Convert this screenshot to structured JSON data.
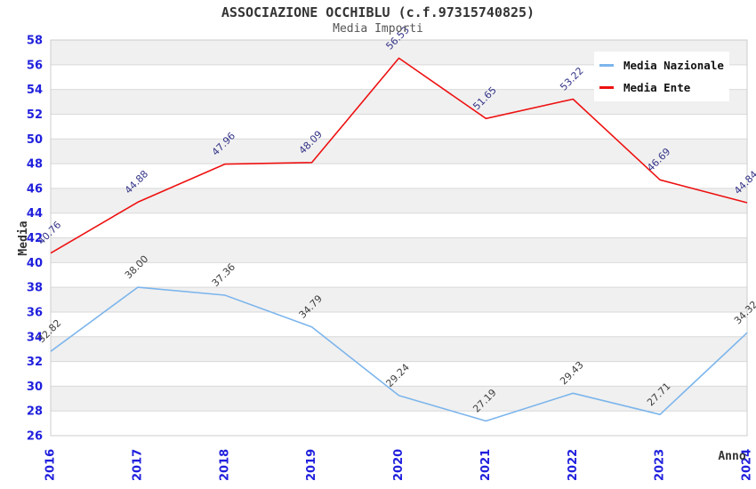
{
  "chart_data": {
    "type": "line",
    "title": "ASSOCIAZIONE OCCHIBLU (c.f.97315740825)",
    "subtitle": "Media Importi",
    "xlabel": "Anno",
    "ylabel": "Media",
    "categories": [
      "2016",
      "2017",
      "2018",
      "2019",
      "2020",
      "2021",
      "2022",
      "2023",
      "2024"
    ],
    "series": [
      {
        "name": "Media Nazionale",
        "color": "#7cb5ec",
        "label_color": "#3d3d3d",
        "values": [
          32.82,
          38.0,
          37.36,
          34.79,
          29.24,
          27.19,
          29.43,
          27.71,
          34.32
        ]
      },
      {
        "name": "Media Ente",
        "color": "#ee1111",
        "label_color": "#333388",
        "values": [
          40.76,
          44.88,
          47.96,
          48.09,
          56.53,
          51.65,
          53.22,
          46.69,
          44.84
        ]
      }
    ],
    "ylim": [
      26,
      58
    ],
    "y_ticks": [
      26,
      28,
      30,
      32,
      34,
      36,
      38,
      40,
      42,
      44,
      46,
      48,
      50,
      52,
      54,
      56,
      58
    ],
    "grid": true,
    "legend_position": "top-right",
    "colors": {
      "tick_label": "#2020dd",
      "band": "#f0f0f0",
      "grid": "#d9d9d9",
      "plot_border": "#cccccc",
      "title": "#333333",
      "subtitle": "#555555",
      "axis_title": "#333333"
    }
  }
}
